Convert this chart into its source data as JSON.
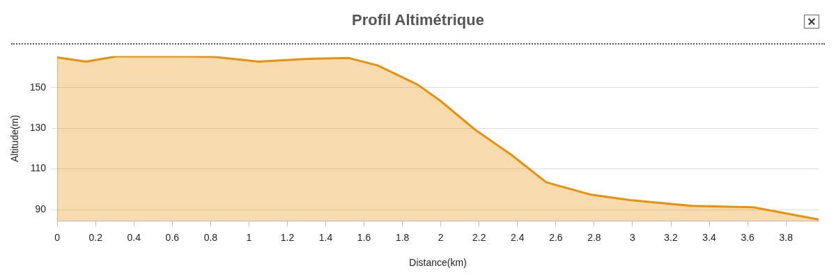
{
  "chart_data": {
    "type": "area",
    "title": "Profil Altimétrique",
    "xlabel": "Distance(km)",
    "ylabel": "Altitude(m)",
    "series": [
      {
        "color": "#e8900c",
        "x": [
          0,
          0.15,
          0.31,
          0.67,
          0.82,
          1.05,
          1.31,
          1.52,
          1.67,
          1.88,
          2.0,
          2.18,
          2.37,
          2.55,
          2.78,
          2.99,
          3.31,
          3.63,
          3.97
        ],
        "values": [
          164.8,
          162.7,
          165.3,
          165.3,
          165,
          162.7,
          164.1,
          164.5,
          160.9,
          151.4,
          143.3,
          129.2,
          116.8,
          103.4,
          97.4,
          94.6,
          91.8,
          91.1,
          85.1
        ]
      }
    ],
    "xlim": [
      0,
      3.97
    ],
    "xticks": [
      0,
      0.2,
      0.4,
      0.6,
      0.8,
      1,
      1.2,
      1.4,
      1.6,
      1.8,
      2,
      2.2,
      2.4,
      2.6,
      2.8,
      3,
      3.2,
      3.4,
      3.6,
      3.8
    ],
    "ylim": [
      84.4,
      165.5
    ],
    "yticks": [
      90,
      110,
      130,
      150
    ],
    "grid": "y"
  }
}
